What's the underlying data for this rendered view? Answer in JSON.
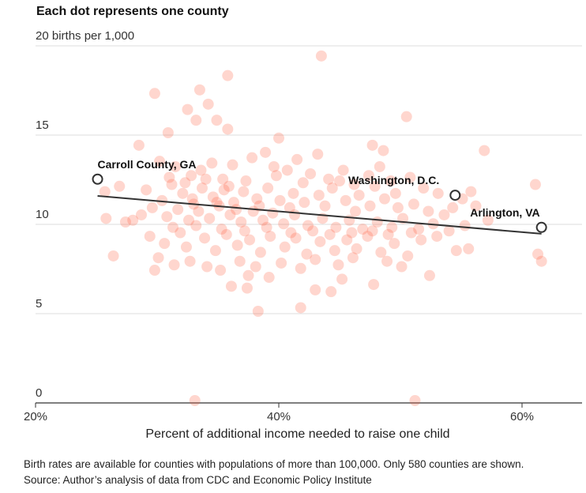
{
  "chart_data": {
    "type": "scatter",
    "title": "Each dot represents one county",
    "ylabel": "20 births per 1,000",
    "xlabel": "Percent of additional income needed to raise one child",
    "xlim": [
      20,
      65
    ],
    "ylim": [
      0,
      20
    ],
    "x_ticks": [
      {
        "v": 20,
        "label": "20%"
      },
      {
        "v": 40,
        "label": "40%"
      },
      {
        "v": 60,
        "label": "60%"
      }
    ],
    "y_ticks": [
      {
        "v": 0,
        "label": "0"
      },
      {
        "v": 5,
        "label": "5"
      },
      {
        "v": 10,
        "label": "10"
      },
      {
        "v": 15,
        "label": "15"
      },
      {
        "v": 20,
        "label": "20 births per 1,000"
      }
    ],
    "grid": true,
    "dot_color": "#ff5a3c",
    "trend_line": {
      "x": [
        25.1,
        61.6
      ],
      "y": [
        11.46,
        9.34
      ]
    },
    "highlighted": [
      {
        "name": "Carroll County, GA",
        "x": 25.1,
        "y": 12.4
      },
      {
        "name": "Washington, D.C.",
        "x": 54.5,
        "y": 11.5
      },
      {
        "name": "Arlington, VA",
        "x": 61.6,
        "y": 9.7
      }
    ],
    "points": [
      [
        29.8,
        17.2
      ],
      [
        33.5,
        17.4
      ],
      [
        35.8,
        18.2
      ],
      [
        43.5,
        19.3
      ],
      [
        34.2,
        16.6
      ],
      [
        32.5,
        16.3
      ],
      [
        33.2,
        15.7
      ],
      [
        30.9,
        15
      ],
      [
        34.9,
        15.7
      ],
      [
        35.8,
        15.2
      ],
      [
        50.5,
        15.9
      ],
      [
        40,
        14.7
      ],
      [
        28.5,
        14.3
      ],
      [
        47.7,
        14.3
      ],
      [
        48.6,
        14
      ],
      [
        56.9,
        14
      ],
      [
        38.3,
        5
      ],
      [
        41.8,
        5.2
      ],
      [
        33.1,
        0
      ],
      [
        51.2,
        0
      ],
      [
        47.8,
        6.5
      ],
      [
        44.3,
        6.1
      ],
      [
        43,
        6.2
      ],
      [
        36.1,
        6.4
      ],
      [
        37.4,
        6.3
      ],
      [
        37.5,
        7
      ],
      [
        39.2,
        6.9
      ],
      [
        45.2,
        6.8
      ],
      [
        52.4,
        7
      ],
      [
        29.8,
        7.3
      ],
      [
        26.4,
        8.1
      ],
      [
        34.1,
        7.5
      ],
      [
        61.3,
        8.2
      ],
      [
        61.6,
        7.8
      ],
      [
        61.1,
        12.1
      ],
      [
        55.6,
        8.5
      ],
      [
        54.6,
        8.4
      ],
      [
        25.8,
        10.2
      ],
      [
        26.9,
        12
      ],
      [
        25.7,
        11.7
      ],
      [
        27.4,
        10
      ],
      [
        28,
        10.1
      ],
      [
        30.2,
        13.4
      ],
      [
        31.5,
        13.1
      ],
      [
        32.8,
        12.6
      ],
      [
        33.6,
        12.9
      ],
      [
        34.5,
        13.3
      ],
      [
        35.4,
        12.4
      ],
      [
        36.2,
        13.2
      ],
      [
        37.8,
        13.6
      ],
      [
        38.9,
        13.9
      ],
      [
        39.6,
        13.1
      ],
      [
        40.7,
        12.9
      ],
      [
        41.5,
        13.5
      ],
      [
        42.6,
        12.7
      ],
      [
        43.2,
        13.8
      ],
      [
        44.1,
        12.4
      ],
      [
        45.3,
        12.9
      ],
      [
        46.2,
        12.1
      ],
      [
        47.4,
        12.6
      ],
      [
        48.3,
        13.1
      ],
      [
        49.2,
        12.3
      ],
      [
        50.8,
        12.5
      ],
      [
        51.9,
        11.9
      ],
      [
        53.1,
        11.6
      ],
      [
        55.1,
        11.3
      ],
      [
        56.2,
        10.9
      ],
      [
        57.2,
        10.1
      ],
      [
        29.1,
        11.8
      ],
      [
        30.4,
        11.2
      ],
      [
        31.2,
        12.1
      ],
      [
        32.1,
        11.6
      ],
      [
        32.9,
        11.3
      ],
      [
        33.7,
        11.9
      ],
      [
        34.6,
        11.4
      ],
      [
        35.5,
        11.8
      ],
      [
        36.3,
        11.1
      ],
      [
        37.1,
        11.7
      ],
      [
        38.2,
        11.3
      ],
      [
        39.1,
        11.9
      ],
      [
        40.1,
        11.2
      ],
      [
        41.2,
        11.6
      ],
      [
        42.1,
        11.1
      ],
      [
        43.3,
        11.5
      ],
      [
        44.4,
        11.9
      ],
      [
        45.5,
        11.2
      ],
      [
        46.6,
        11.5
      ],
      [
        47.5,
        10.9
      ],
      [
        48.7,
        11.3
      ],
      [
        49.8,
        10.8
      ],
      [
        51.1,
        11.0
      ],
      [
        52.3,
        10.6
      ],
      [
        53.6,
        10.4
      ],
      [
        28.7,
        10.4
      ],
      [
        29.6,
        10.8
      ],
      [
        30.8,
        10.3
      ],
      [
        31.7,
        10.7
      ],
      [
        32.6,
        10.1
      ],
      [
        33.4,
        10.6
      ],
      [
        34.3,
        10.2
      ],
      [
        35.1,
        10.9
      ],
      [
        36.0,
        10.4
      ],
      [
        36.9,
        10.0
      ],
      [
        37.9,
        10.6
      ],
      [
        38.7,
        10.1
      ],
      [
        39.5,
        10.5
      ],
      [
        40.4,
        9.9
      ],
      [
        41.3,
        10.4
      ],
      [
        42.4,
        9.8
      ],
      [
        43.6,
        10.2
      ],
      [
        44.7,
        9.7
      ],
      [
        45.8,
        10.1
      ],
      [
        46.9,
        9.6
      ],
      [
        48.1,
        10.0
      ],
      [
        49.3,
        9.7
      ],
      [
        50.2,
        10.2
      ],
      [
        51.5,
        9.6
      ],
      [
        52.7,
        9.9
      ],
      [
        54.0,
        9.5
      ],
      [
        55.3,
        9.8
      ],
      [
        29.4,
        9.2
      ],
      [
        30.6,
        8.8
      ],
      [
        31.9,
        9.4
      ],
      [
        32.4,
        8.6
      ],
      [
        33.9,
        9.1
      ],
      [
        34.8,
        8.4
      ],
      [
        35.7,
        9.3
      ],
      [
        36.6,
        8.7
      ],
      [
        37.6,
        9.0
      ],
      [
        38.5,
        8.3
      ],
      [
        39.3,
        9.2
      ],
      [
        40.5,
        8.6
      ],
      [
        41.4,
        9.1
      ],
      [
        42.3,
        8.2
      ],
      [
        43.4,
        8.9
      ],
      [
        44.6,
        8.4
      ],
      [
        45.6,
        9.0
      ],
      [
        46.4,
        8.5
      ],
      [
        47.3,
        9.2
      ],
      [
        48.4,
        8.3
      ],
      [
        49.5,
        8.8
      ],
      [
        50.6,
        8.1
      ],
      [
        51.7,
        9.0
      ],
      [
        30.1,
        8.0
      ],
      [
        31.4,
        7.6
      ],
      [
        32.7,
        7.8
      ],
      [
        35.2,
        7.3
      ],
      [
        36.8,
        7.8
      ],
      [
        38.1,
        7.5
      ],
      [
        40.2,
        7.7
      ],
      [
        41.8,
        7.4
      ],
      [
        43.0,
        7.9
      ],
      [
        44.9,
        7.6
      ],
      [
        46.1,
        8.0
      ],
      [
        48.9,
        7.8
      ],
      [
        50.1,
        7.5
      ],
      [
        31.0,
        12.5
      ],
      [
        32.3,
        12.2
      ],
      [
        33.0,
        11.0
      ],
      [
        34.0,
        12.4
      ],
      [
        34.9,
        11.1
      ],
      [
        35.9,
        12.0
      ],
      [
        36.5,
        10.7
      ],
      [
        37.3,
        12.3
      ],
      [
        38.4,
        10.9
      ],
      [
        39.8,
        12.6
      ],
      [
        40.9,
        10.8
      ],
      [
        42.0,
        12.2
      ],
      [
        43.8,
        10.9
      ],
      [
        45.0,
        12.3
      ],
      [
        46.3,
        10.6
      ],
      [
        47.9,
        12.0
      ],
      [
        49.6,
        11.6
      ],
      [
        31.3,
        9.7
      ],
      [
        33.2,
        9.8
      ],
      [
        35.3,
        9.6
      ],
      [
        37.2,
        9.5
      ],
      [
        39.0,
        9.7
      ],
      [
        41.0,
        9.4
      ],
      [
        42.8,
        9.5
      ],
      [
        44.2,
        9.3
      ],
      [
        46.0,
        9.4
      ],
      [
        47.7,
        9.5
      ],
      [
        49.0,
        9.3
      ],
      [
        50.9,
        9.4
      ],
      [
        53.0,
        9.2
      ],
      [
        54.3,
        10.8
      ],
      [
        55.8,
        11.7
      ]
    ]
  },
  "notes": {
    "line1": "Birth rates are available for counties with populations of more than 100,000. Only 580 counties are shown.",
    "line2": "Source: Author’s analysis of data from CDC and Economic Policy Institute"
  }
}
